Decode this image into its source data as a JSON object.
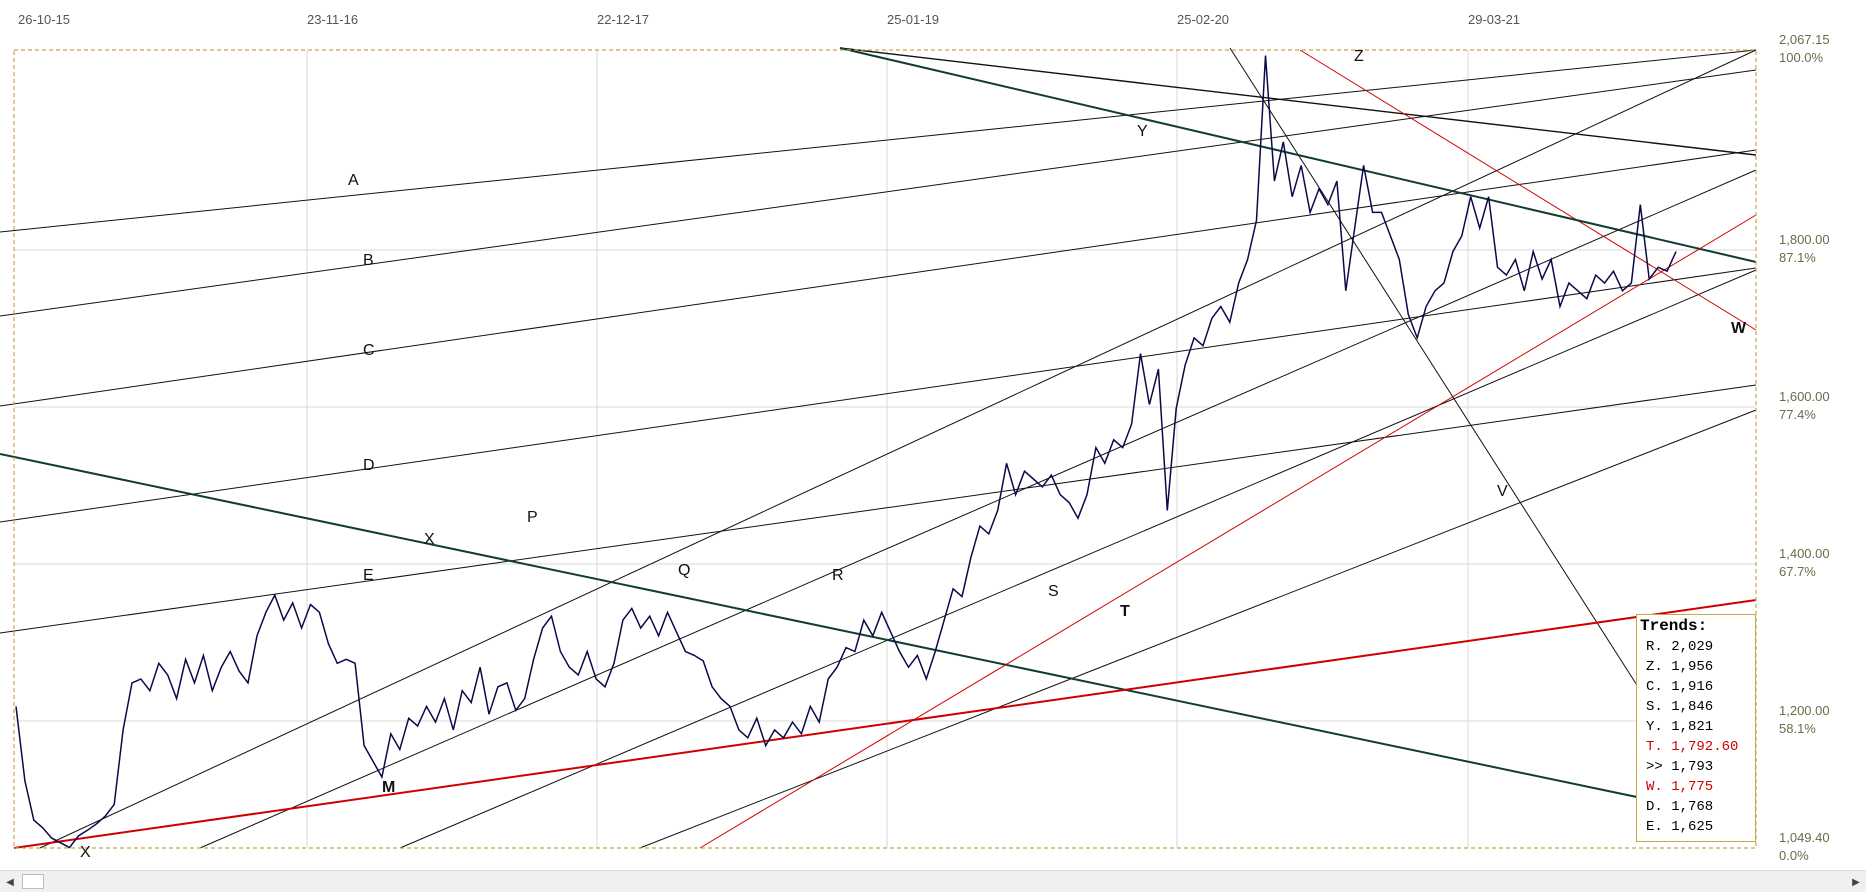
{
  "chart_data": {
    "type": "line",
    "x_ticks": [
      "26-10-15",
      "23-11-16",
      "22-12-17",
      "25-01-19",
      "25-02-20",
      "29-03-21"
    ],
    "y_ticks": [
      {
        "value": "2,067.15",
        "pct": "100.0%"
      },
      {
        "value": "1,800.00",
        "pct": "87.1%"
      },
      {
        "value": "1,600.00",
        "pct": "77.4%"
      },
      {
        "value": "1,400.00",
        "pct": "67.7%"
      },
      {
        "value": "1,200.00",
        "pct": "58.1%"
      },
      {
        "value": "1,049.40",
        "pct": "0.0%"
      }
    ],
    "ylim": [
      1049.4,
      2067.15
    ],
    "line_labels": [
      "A",
      "B",
      "C",
      "D",
      "E",
      "X",
      "P",
      "Q",
      "R",
      "S",
      "T",
      "M",
      "V",
      "W",
      "Y",
      "Z",
      "X"
    ],
    "series": [
      {
        "values": [
          1230,
          1135,
          1085,
          1075,
          1062,
          1056,
          1050,
          1065,
          1072,
          1080,
          1090,
          1105,
          1200,
          1260,
          1265,
          1250,
          1285,
          1270,
          1240,
          1290,
          1260,
          1295,
          1250,
          1280,
          1300,
          1275,
          1260,
          1320,
          1350,
          1372,
          1340,
          1362,
          1330,
          1360,
          1350,
          1310,
          1285,
          1290,
          1285,
          1180,
          1160,
          1140,
          1195,
          1175,
          1215,
          1205,
          1230,
          1210,
          1240,
          1200,
          1250,
          1235,
          1280,
          1220,
          1255,
          1260,
          1225,
          1240,
          1290,
          1330,
          1345,
          1300,
          1280,
          1270,
          1300,
          1265,
          1255,
          1285,
          1340,
          1355,
          1330,
          1345,
          1320,
          1350,
          1325,
          1300,
          1295,
          1288,
          1255,
          1240,
          1230,
          1200,
          1190,
          1215,
          1180,
          1200,
          1190,
          1210,
          1195,
          1230,
          1210,
          1265,
          1280,
          1305,
          1300,
          1340,
          1320,
          1350,
          1325,
          1300,
          1280,
          1295,
          1265,
          1300,
          1340,
          1380,
          1370,
          1420,
          1460,
          1450,
          1480,
          1540,
          1500,
          1530,
          1520,
          1510,
          1525,
          1500,
          1490,
          1470,
          1500,
          1560,
          1540,
          1570,
          1560,
          1590,
          1680,
          1615,
          1660,
          1480,
          1610,
          1665,
          1700,
          1690,
          1725,
          1740,
          1720,
          1770,
          1800,
          1850,
          2060,
          1900,
          1950,
          1880,
          1920,
          1860,
          1890,
          1870,
          1900,
          1760,
          1840,
          1920,
          1860,
          1860,
          1830,
          1800,
          1730,
          1700,
          1740,
          1760,
          1770,
          1810,
          1830,
          1880,
          1840,
          1880,
          1790,
          1780,
          1800,
          1760,
          1810,
          1775,
          1800,
          1740,
          1770,
          1760,
          1750,
          1780,
          1770,
          1785,
          1760,
          1770,
          1870,
          1775,
          1790,
          1785,
          1810
        ]
      }
    ],
    "trends_title": "Trends:",
    "trends": [
      {
        "label": "R. 2,029",
        "color": "#000000"
      },
      {
        "label": "Z. 1,956",
        "color": "#000000"
      },
      {
        "label": "C. 1,916",
        "color": "#000000"
      },
      {
        "label": "S. 1,846",
        "color": "#000000"
      },
      {
        "label": "Y. 1,821",
        "color": "#000000"
      },
      {
        "label": "T. 1,792.60",
        "color": "#d00000"
      },
      {
        "label": ">> 1,793",
        "color": "#000000"
      },
      {
        "label": "W. 1,775",
        "color": "#d00000"
      },
      {
        "label": "D. 1,768",
        "color": "#000000"
      },
      {
        "label": "E. 1,625",
        "color": "#000000"
      }
    ],
    "colors": {
      "price": "#0a0a4a",
      "frame": "#c9a64a",
      "trend_black": "#111111",
      "trend_teal": "#0f3d33",
      "trend_red": "#d00000",
      "grid": "#d8d8d8"
    }
  },
  "scrollbar": {
    "left_icon": "arrow-left-icon",
    "right_icon": "arrow-right-icon"
  }
}
